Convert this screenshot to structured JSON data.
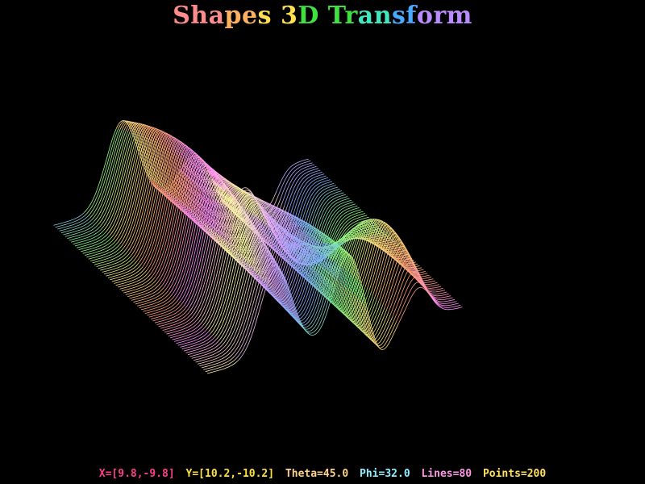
{
  "title": {
    "word1": "Shapes",
    "word2": "3D",
    "word3": "Transform",
    "colors": [
      "#ff8c8c",
      "#ffb060",
      "#ffe050",
      "#40e040",
      "#40e8c0",
      "#4aa8ff",
      "#b88cff"
    ]
  },
  "status": {
    "x_range": "X=[9.8,-9.8]",
    "y_range": "Y=[10.2,-10.2]",
    "theta": "Theta=45.0",
    "phi": "Phi=32.0",
    "lines": "Lines=80",
    "points": "Points=200",
    "colors": {
      "x_range": "#ff3c8c",
      "y_range": "#ffe040",
      "theta": "#ffd28c",
      "phi": "#8cf0ff",
      "lines": "#ff96e6",
      "points": "#ffe060"
    }
  },
  "surface": {
    "x_range": [
      -9.8,
      9.8
    ],
    "y_range": [
      -10.2,
      10.2
    ],
    "theta": 45.0,
    "phi": 32.0,
    "lines": 80,
    "points": 200,
    "palette": [
      "#ff8cff",
      "#ff9c70",
      "#ffe680",
      "#80ff80",
      "#7fb0ff",
      "#e0a0ff",
      "#ffffa0"
    ]
  }
}
